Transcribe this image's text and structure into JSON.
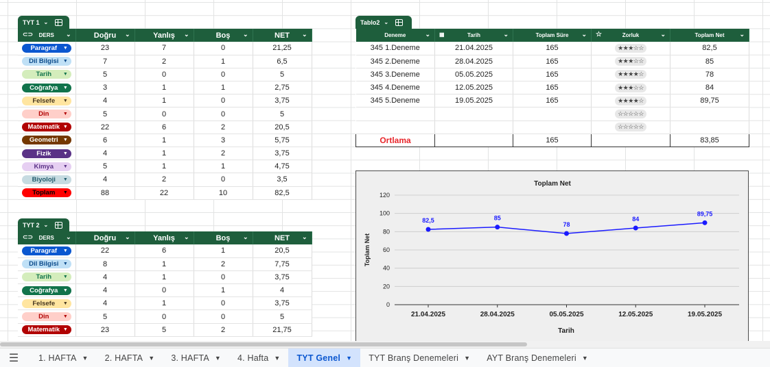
{
  "tyt1": {
    "tab_label": "TYT 1",
    "headers": [
      "DERS",
      "Doğru",
      "Yanlış",
      "Boş",
      "NET"
    ],
    "rows": [
      {
        "ders": "Paragraf",
        "bg": "#0b57d0",
        "fg": "#ffffff",
        "d": "23",
        "y": "7",
        "b": "0",
        "net": "21,25"
      },
      {
        "ders": "Dil Bilgisi",
        "bg": "#bfe0f6",
        "fg": "#0b4a8b",
        "d": "7",
        "y": "2",
        "b": "1",
        "net": "6,5"
      },
      {
        "ders": "Tarih",
        "bg": "#d4edbc",
        "fg": "#11734b",
        "d": "5",
        "y": "0",
        "b": "0",
        "net": "5"
      },
      {
        "ders": "Coğrafya",
        "bg": "#11734b",
        "fg": "#ffffff",
        "d": "3",
        "y": "1",
        "b": "1",
        "net": "2,75"
      },
      {
        "ders": "Felsefe",
        "bg": "#ffe5a0",
        "fg": "#473821",
        "d": "4",
        "y": "1",
        "b": "0",
        "net": "3,75"
      },
      {
        "ders": "Din",
        "bg": "#ffcfc9",
        "fg": "#b10202",
        "d": "5",
        "y": "0",
        "b": "0",
        "net": "5"
      },
      {
        "ders": "Matematik",
        "bg": "#b10202",
        "fg": "#ffffff",
        "d": "22",
        "y": "6",
        "b": "2",
        "net": "20,5"
      },
      {
        "ders": "Geometri",
        "bg": "#753800",
        "fg": "#ffffff",
        "d": "6",
        "y": "1",
        "b": "3",
        "net": "5,75"
      },
      {
        "ders": "Fizik",
        "bg": "#5a3286",
        "fg": "#ffffff",
        "d": "4",
        "y": "1",
        "b": "2",
        "net": "3,75"
      },
      {
        "ders": "Kimya",
        "bg": "#e6cff2",
        "fg": "#5a3286",
        "d": "5",
        "y": "1",
        "b": "1",
        "net": "4,75"
      },
      {
        "ders": "Biyoloji",
        "bg": "#c6dbe1",
        "fg": "#215a6c",
        "d": "4",
        "y": "2",
        "b": "0",
        "net": "3,5"
      },
      {
        "ders": "Toplam",
        "bg": "#ff0000",
        "fg": "#000000",
        "d": "88",
        "y": "22",
        "b": "10",
        "net": "82,5"
      }
    ]
  },
  "tyt2": {
    "tab_label": "TYT 2",
    "headers": [
      "DERS",
      "Doğru",
      "Yanlış",
      "Boş",
      "NET"
    ],
    "rows": [
      {
        "ders": "Paragraf",
        "bg": "#0b57d0",
        "fg": "#ffffff",
        "d": "22",
        "y": "6",
        "b": "1",
        "net": "20,5"
      },
      {
        "ders": "Dil Bilgisi",
        "bg": "#bfe0f6",
        "fg": "#0b4a8b",
        "d": "8",
        "y": "1",
        "b": "2",
        "net": "7,75"
      },
      {
        "ders": "Tarih",
        "bg": "#d4edbc",
        "fg": "#11734b",
        "d": "4",
        "y": "1",
        "b": "0",
        "net": "3,75"
      },
      {
        "ders": "Coğrafya",
        "bg": "#11734b",
        "fg": "#ffffff",
        "d": "4",
        "y": "0",
        "b": "1",
        "net": "4"
      },
      {
        "ders": "Felsefe",
        "bg": "#ffe5a0",
        "fg": "#473821",
        "d": "4",
        "y": "1",
        "b": "0",
        "net": "3,75"
      },
      {
        "ders": "Din",
        "bg": "#ffcfc9",
        "fg": "#b10202",
        "d": "5",
        "y": "0",
        "b": "0",
        "net": "5"
      },
      {
        "ders": "Matematik",
        "bg": "#b10202",
        "fg": "#ffffff",
        "d": "23",
        "y": "5",
        "b": "2",
        "net": "21,75"
      }
    ]
  },
  "tablo2": {
    "tab_label": "Tablo2",
    "headers": [
      "Deneme",
      "Tarih",
      "Toplam Süre",
      "Zorluk",
      "Toplam Net"
    ],
    "rows": [
      {
        "deneme": "345 1.Deneme",
        "tarih": "21.04.2025",
        "sure": "165",
        "stars": "★★★☆☆",
        "net": "82,5"
      },
      {
        "deneme": "345 2.Deneme",
        "tarih": "28.04.2025",
        "sure": "165",
        "stars": "★★★☆☆",
        "net": "85"
      },
      {
        "deneme": "345 3.Deneme",
        "tarih": "05.05.2025",
        "sure": "165",
        "stars": "★★★★☆",
        "net": "78"
      },
      {
        "deneme": "345 4.Deneme",
        "tarih": "12.05.2025",
        "sure": "165",
        "stars": "★★★☆☆",
        "net": "84"
      },
      {
        "deneme": "345 5.Deneme",
        "tarih": "19.05.2025",
        "sure": "165",
        "stars": "★★★★☆",
        "net": "89,75"
      },
      {
        "deneme": "",
        "tarih": "",
        "sure": "",
        "stars": "☆☆☆☆☆",
        "net": ""
      },
      {
        "deneme": "",
        "tarih": "",
        "sure": "",
        "stars": "☆☆☆☆☆",
        "net": ""
      }
    ],
    "footer": {
      "label": "Ortlama",
      "sure": "165",
      "net": "83,85",
      "label_color": "#e8262b"
    }
  },
  "chart_data": {
    "type": "line",
    "title": "Toplam Net",
    "xlabel": "Tarih",
    "ylabel": "Toplam Net",
    "categories": [
      "21.04.2025",
      "28.04.2025",
      "05.05.2025",
      "12.05.2025",
      "19.05.2025"
    ],
    "values": [
      82.5,
      85,
      78,
      84,
      89.75
    ],
    "data_labels": [
      "82,5",
      "85",
      "78",
      "84",
      "89,75"
    ],
    "yticks": [
      0,
      20,
      40,
      60,
      80,
      100,
      120
    ],
    "ylim": [
      0,
      120
    ],
    "grid": true,
    "color": "#1a1aff"
  },
  "sheet_tabs": [
    {
      "label": "1. HAFTA",
      "active": false
    },
    {
      "label": "2. HAFTA",
      "active": false
    },
    {
      "label": "3. HAFTA",
      "active": false
    },
    {
      "label": "4. Hafta",
      "active": false
    },
    {
      "label": "TYT Genel",
      "active": true
    },
    {
      "label": "TYT Branş Denemeleri",
      "active": false
    },
    {
      "label": "AYT Branş Denemeleri",
      "active": false
    }
  ]
}
